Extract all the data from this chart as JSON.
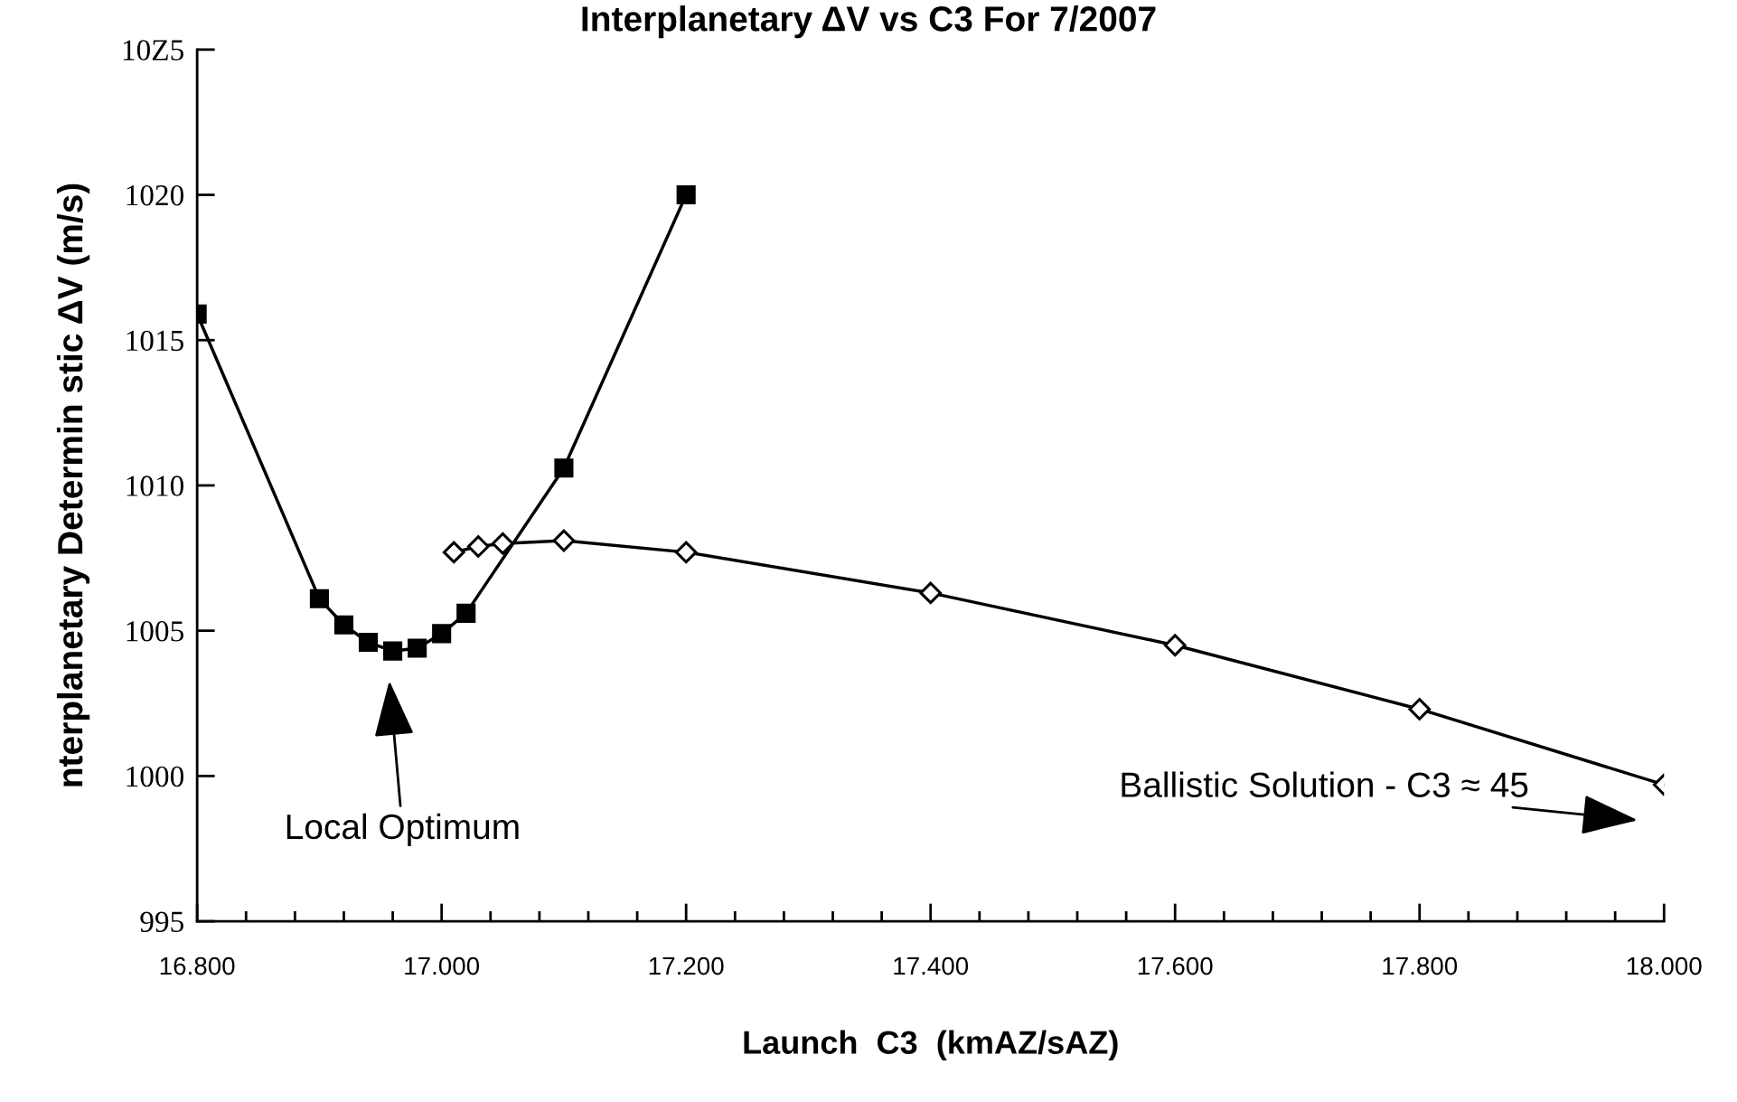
{
  "chart_data": {
    "type": "line",
    "title": "Interplanetary ΔV vs C3 For 7/2007",
    "xlabel": "Launch  C3  (kmAZ/sAZ)",
    "ylabel": "nterplanetary Determin stic ΔV (m/s)",
    "xlim": [
      16.8,
      18.0
    ],
    "ylim": [
      995,
      1025
    ],
    "xticks": [
      {
        "value": 16.8,
        "label": "16.800"
      },
      {
        "value": 16.84,
        "label": null
      },
      {
        "value": 16.88,
        "label": null
      },
      {
        "value": 16.92,
        "label": null
      },
      {
        "value": 16.96,
        "label": null
      },
      {
        "value": 17.0,
        "label": "17.000"
      },
      {
        "value": 17.04,
        "label": null
      },
      {
        "value": 17.08,
        "label": null
      },
      {
        "value": 17.12,
        "label": null
      },
      {
        "value": 17.16,
        "label": null
      },
      {
        "value": 17.2,
        "label": "17.200"
      },
      {
        "value": 17.24,
        "label": null
      },
      {
        "value": 17.28,
        "label": null
      },
      {
        "value": 17.32,
        "label": null
      },
      {
        "value": 17.36,
        "label": null
      },
      {
        "value": 17.4,
        "label": "17.400"
      },
      {
        "value": 17.44,
        "label": null
      },
      {
        "value": 17.48,
        "label": null
      },
      {
        "value": 17.52,
        "label": null
      },
      {
        "value": 17.56,
        "label": null
      },
      {
        "value": 17.6,
        "label": "17.600"
      },
      {
        "value": 17.64,
        "label": null
      },
      {
        "value": 17.68,
        "label": null
      },
      {
        "value": 17.72,
        "label": null
      },
      {
        "value": 17.76,
        "label": null
      },
      {
        "value": 17.8,
        "label": "17.800"
      },
      {
        "value": 17.84,
        "label": null
      },
      {
        "value": 17.88,
        "label": null
      },
      {
        "value": 17.92,
        "label": null
      },
      {
        "value": 17.96,
        "label": null
      },
      {
        "value": 18.0,
        "label": "18.000"
      }
    ],
    "yticks": [
      995,
      1000,
      1005,
      1010,
      1015,
      1020,
      {
        "value": 1025,
        "label": "10Z5"
      }
    ],
    "grid": false,
    "legend": false,
    "line_style": "solid",
    "series": [
      {
        "color": "#000000",
        "marker": "square",
        "x": [
          16.8,
          16.9,
          16.92,
          16.94,
          16.96,
          16.98,
          17.0,
          17.02,
          17.1,
          17.2
        ],
        "values": [
          1015.9,
          1006.1,
          1005.2,
          1004.6,
          1004.3,
          1004.4,
          1004.9,
          1005.6,
          1010.6,
          1020.0
        ]
      },
      {
        "color": "#000000",
        "marker": "diamond",
        "x": [
          17.01,
          17.03,
          17.05,
          17.1,
          17.2,
          17.4,
          17.6,
          17.8,
          18.0
        ],
        "values": [
          1007.7,
          1007.9,
          1008.0,
          1008.1,
          1007.7,
          1006.3,
          1004.5,
          1002.3,
          999.7
        ]
      }
    ],
    "annotations": [
      "Local Optimum",
      "Ballistic Solution - C3 ≈ 45"
    ]
  }
}
